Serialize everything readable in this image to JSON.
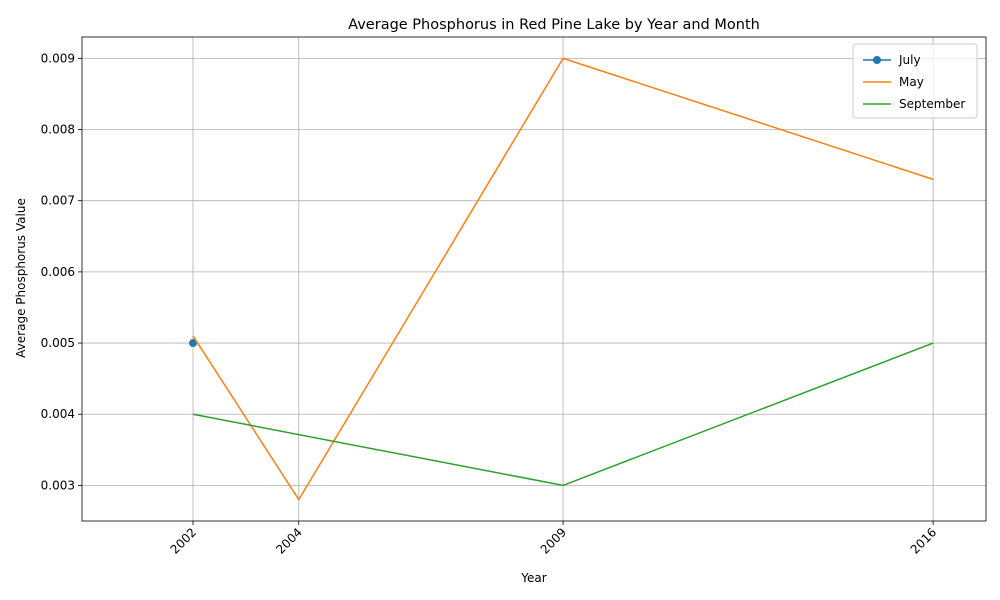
{
  "chart_data": {
    "type": "line",
    "title": "Average Phosphorus in Red Pine Lake by Year and Month",
    "xlabel": "Year",
    "ylabel": "Average Phosphorus Value",
    "xlim": [
      1999.9,
      2017.0
    ],
    "ylim": [
      0.0025,
      0.0093
    ],
    "x_ticks": [
      2002,
      2004,
      2009,
      2016
    ],
    "y_ticks": [
      0.003,
      0.004,
      0.005,
      0.006,
      0.007,
      0.008,
      0.009
    ],
    "y_tick_labels": [
      "0.003",
      "0.004",
      "0.005",
      "0.006",
      "0.007",
      "0.008",
      "0.009"
    ],
    "grid": true,
    "legend_position": "top-right",
    "series": [
      {
        "name": "July",
        "color": "#1f77b4",
        "marker": "circle",
        "x": [
          2002
        ],
        "y": [
          0.005
        ]
      },
      {
        "name": "May",
        "color": "#ff7f0e",
        "marker": "none",
        "x": [
          2002,
          2004,
          2009,
          2016
        ],
        "y": [
          0.0051,
          0.0028,
          0.009,
          0.0073
        ]
      },
      {
        "name": "September",
        "color": "#2ca02c",
        "marker": "none",
        "x": [
          2002,
          2009,
          2016
        ],
        "y": [
          0.004,
          0.003,
          0.005
        ]
      }
    ]
  }
}
